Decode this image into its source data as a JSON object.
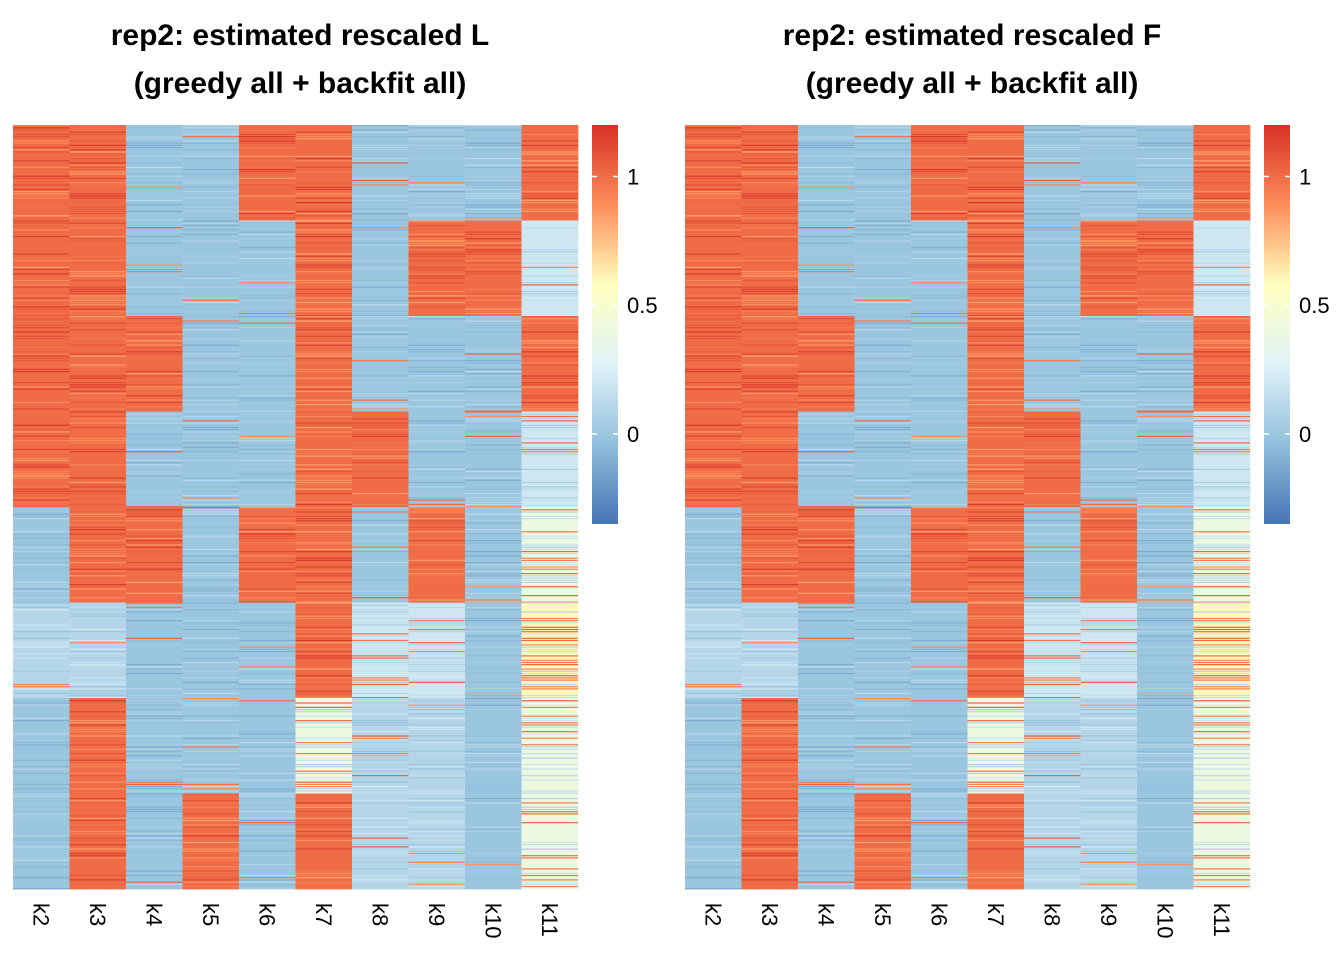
{
  "chart_data": [
    {
      "type": "heatmap",
      "title": "rep2: estimated rescaled L",
      "subtitle": "(greedy all + backfit all)",
      "columns": [
        "k2",
        "k3",
        "k4",
        "k5",
        "k6",
        "k7",
        "k8",
        "k9",
        "k10",
        "k11"
      ],
      "row_blocks": [
        {
          "start": 0.0,
          "end": 0.125,
          "values": [
            1.0,
            1.0,
            0.0,
            0.0,
            1.0,
            1.0,
            0.0,
            0.0,
            0.0,
            1.0
          ]
        },
        {
          "start": 0.125,
          "end": 0.25,
          "values": [
            1.0,
            1.0,
            0.0,
            0.0,
            0.0,
            1.0,
            0.0,
            1.0,
            1.0,
            0.2
          ]
        },
        {
          "start": 0.25,
          "end": 0.375,
          "values": [
            1.0,
            1.0,
            1.0,
            0.0,
            0.0,
            1.0,
            0.0,
            0.0,
            0.0,
            1.0
          ]
        },
        {
          "start": 0.375,
          "end": 0.5,
          "values": [
            1.0,
            1.0,
            0.0,
            0.0,
            0.0,
            1.0,
            1.0,
            0.0,
            0.0,
            0.2
          ]
        },
        {
          "start": 0.5,
          "end": 0.625,
          "values": [
            0.0,
            1.0,
            1.0,
            0.0,
            1.0,
            1.0,
            0.0,
            1.0,
            0.0,
            0.4
          ]
        },
        {
          "start": 0.625,
          "end": 0.75,
          "values": [
            0.1,
            0.1,
            0.0,
            0.0,
            0.0,
            1.0,
            0.2,
            0.2,
            0.0,
            0.6
          ]
        },
        {
          "start": 0.75,
          "end": 0.875,
          "values": [
            0.0,
            1.0,
            0.0,
            0.0,
            0.0,
            0.4,
            0.1,
            0.1,
            0.0,
            0.4
          ]
        },
        {
          "start": 0.875,
          "end": 1.0,
          "values": [
            0.0,
            1.0,
            0.0,
            1.0,
            0.0,
            1.0,
            0.1,
            0.1,
            0.0,
            0.4
          ]
        }
      ],
      "colorbar": {
        "min": -0.35,
        "max": 1.2,
        "ticks": [
          0,
          0.5,
          1
        ],
        "tick_labels": [
          "0",
          "0.5",
          "1"
        ],
        "colors": [
          "#4575B4",
          "#91BFDB",
          "#E0F3F8",
          "#FFFFBF",
          "#FC8D59",
          "#D73027"
        ]
      },
      "legend_position": "right"
    },
    {
      "type": "heatmap",
      "title": "rep2: estimated rescaled F",
      "subtitle": "(greedy all + backfit all)",
      "columns": [
        "k2",
        "k3",
        "k4",
        "k5",
        "k6",
        "k7",
        "k8",
        "k9",
        "k10",
        "k11"
      ],
      "row_blocks": [
        {
          "start": 0.0,
          "end": 0.125,
          "values": [
            1.0,
            1.0,
            0.0,
            0.0,
            1.0,
            1.0,
            0.0,
            0.0,
            0.0,
            1.0
          ]
        },
        {
          "start": 0.125,
          "end": 0.25,
          "values": [
            1.0,
            1.0,
            0.0,
            0.0,
            0.0,
            1.0,
            0.0,
            1.0,
            1.0,
            0.2
          ]
        },
        {
          "start": 0.25,
          "end": 0.375,
          "values": [
            1.0,
            1.0,
            1.0,
            0.0,
            0.0,
            1.0,
            0.0,
            0.0,
            0.0,
            1.0
          ]
        },
        {
          "start": 0.375,
          "end": 0.5,
          "values": [
            1.0,
            1.0,
            0.0,
            0.0,
            0.0,
            1.0,
            1.0,
            0.0,
            0.0,
            0.2
          ]
        },
        {
          "start": 0.5,
          "end": 0.625,
          "values": [
            0.0,
            1.0,
            1.0,
            0.0,
            1.0,
            1.0,
            0.0,
            1.0,
            0.0,
            0.4
          ]
        },
        {
          "start": 0.625,
          "end": 0.75,
          "values": [
            0.1,
            0.1,
            0.0,
            0.0,
            0.0,
            1.0,
            0.2,
            0.2,
            0.0,
            0.6
          ]
        },
        {
          "start": 0.75,
          "end": 0.875,
          "values": [
            0.0,
            1.0,
            0.0,
            0.0,
            0.0,
            0.4,
            0.1,
            0.1,
            0.0,
            0.4
          ]
        },
        {
          "start": 0.875,
          "end": 1.0,
          "values": [
            0.0,
            1.0,
            0.0,
            1.0,
            0.0,
            1.0,
            0.1,
            0.1,
            0.0,
            0.4
          ]
        }
      ],
      "colorbar": {
        "min": -0.35,
        "max": 1.2,
        "ticks": [
          0,
          0.5,
          1
        ],
        "tick_labels": [
          "0",
          "0.5",
          "1"
        ],
        "colors": [
          "#4575B4",
          "#91BFDB",
          "#E0F3F8",
          "#FFFFBF",
          "#FC8D59",
          "#D73027"
        ]
      },
      "legend_position": "right"
    }
  ]
}
